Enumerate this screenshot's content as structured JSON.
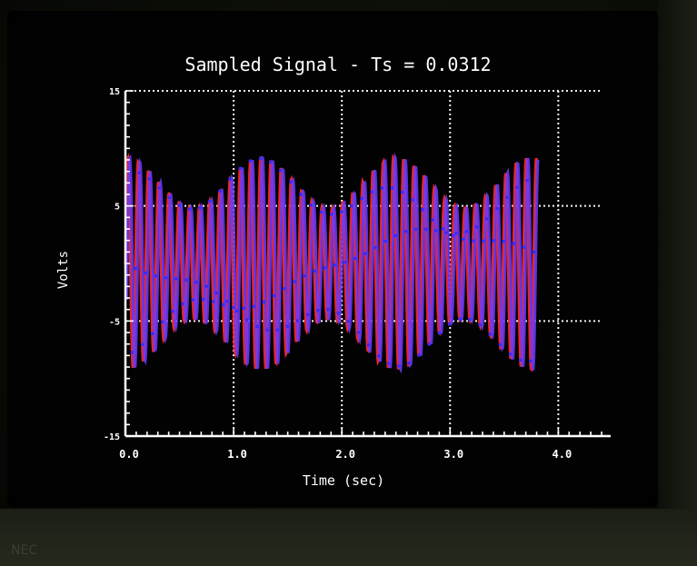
{
  "chart_data": {
    "type": "line",
    "title": "Sampled Signal - Ts = 0.0312",
    "xlabel": "Time (sec)",
    "ylabel": "Volts",
    "xlim": [
      0,
      4.4
    ],
    "ylim": [
      -15,
      15
    ],
    "x_ticks": [
      "0.0",
      "1.0",
      "2.0",
      "3.0",
      "4.0"
    ],
    "y_ticks": [
      "15",
      "5",
      "-5",
      "-15"
    ],
    "grid": true,
    "signal_duration": 3.8,
    "sample_period": 0.0312,
    "series": [
      {
        "color": "#ff2a2a"
      },
      {
        "color": "#6a3cff"
      }
    ]
  },
  "brand_text": "NEC"
}
